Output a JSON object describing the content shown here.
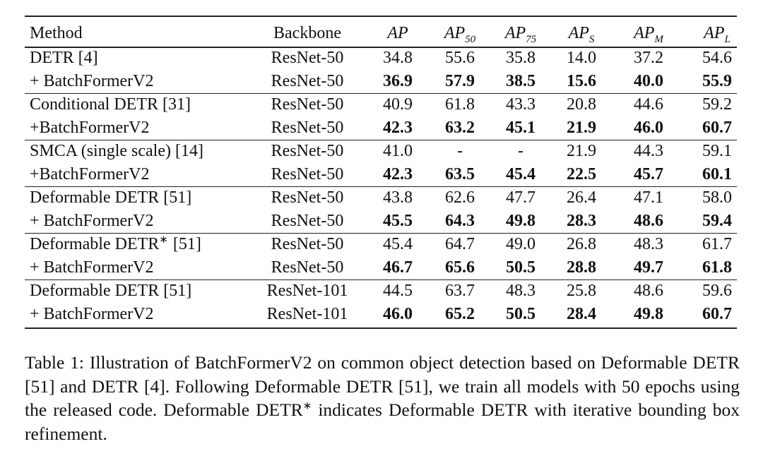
{
  "table": {
    "headers": [
      {
        "text": "Method"
      },
      {
        "text": "Backbone"
      },
      {
        "text": "AP"
      },
      {
        "text": "AP",
        "sub": "50"
      },
      {
        "text": "AP",
        "sub": "75"
      },
      {
        "text": "AP",
        "sub": "S"
      },
      {
        "text": "AP",
        "sub": "M"
      },
      {
        "text": "AP",
        "sub": "L"
      }
    ],
    "rows": [
      {
        "method": "DETR [4]",
        "backbone": "ResNet-50",
        "values": [
          "34.8",
          "55.6",
          "35.8",
          "14.0",
          "37.2",
          "54.6"
        ],
        "bold": false
      },
      {
        "method": "+ BatchFormerV2",
        "backbone": "ResNet-50",
        "values": [
          "36.9",
          "57.9",
          "38.5",
          "15.6",
          "40.0",
          "55.9"
        ],
        "bold": true
      },
      {
        "method": "Conditional DETR [31]",
        "backbone": "ResNet-50",
        "values": [
          "40.9",
          "61.8",
          "43.3",
          "20.8",
          "44.6",
          "59.2"
        ],
        "bold": false
      },
      {
        "method": "+BatchFormerV2",
        "backbone": "ResNet-50",
        "values": [
          "42.3",
          "63.2",
          "45.1",
          "21.9",
          "46.0",
          "60.7"
        ],
        "bold": true
      },
      {
        "method": "SMCA (single scale) [14]",
        "backbone": "ResNet-50",
        "values": [
          "41.0",
          "-",
          "-",
          "21.9",
          "44.3",
          "59.1"
        ],
        "bold": false
      },
      {
        "method": "+BatchFormerV2",
        "backbone": "ResNet-50",
        "values": [
          "42.3",
          "63.5",
          "45.4",
          "22.5",
          "45.7",
          "60.1"
        ],
        "bold": true
      },
      {
        "method": "Deformable DETR [51]",
        "backbone": "ResNet-50",
        "values": [
          "43.8",
          "62.6",
          "47.7",
          "26.4",
          "47.1",
          "58.0"
        ],
        "bold": false
      },
      {
        "method": "+ BatchFormerV2",
        "backbone": "ResNet-50",
        "values": [
          "45.5",
          "64.3",
          "49.8",
          "28.3",
          "48.6",
          "59.4"
        ],
        "bold": true
      },
      {
        "method": "Deformable DETR",
        "method_sup": "∗",
        "method_tail": "[51]",
        "backbone": "ResNet-50",
        "values": [
          "45.4",
          "64.7",
          "49.0",
          "26.8",
          "48.3",
          "61.7"
        ],
        "bold": false
      },
      {
        "method": "+ BatchFormerV2",
        "backbone": "ResNet-50",
        "values": [
          "46.7",
          "65.6",
          "50.5",
          "28.8",
          "49.7",
          "61.8"
        ],
        "bold": true
      },
      {
        "method": "Deformable DETR [51]",
        "backbone": "ResNet-101",
        "values": [
          "44.5",
          "63.7",
          "48.3",
          "25.8",
          "48.6",
          "59.6"
        ],
        "bold": false
      },
      {
        "method": "+ BatchFormerV2",
        "backbone": "ResNet-101",
        "values": [
          "46.0",
          "65.2",
          "50.5",
          "28.4",
          "49.8",
          "60.7"
        ],
        "bold": true
      }
    ]
  },
  "caption": {
    "before": "Table 1: Illustration of BatchFormerV2 on common object detection based on Deformable DETR [51] and DETR [4]. Following Deformable DETR [51], we train all models with 50 epochs using the released code. Deformable DETR",
    "sup": "∗",
    "after": " indicates Deformable DETR with iterative bounding box refinement."
  }
}
